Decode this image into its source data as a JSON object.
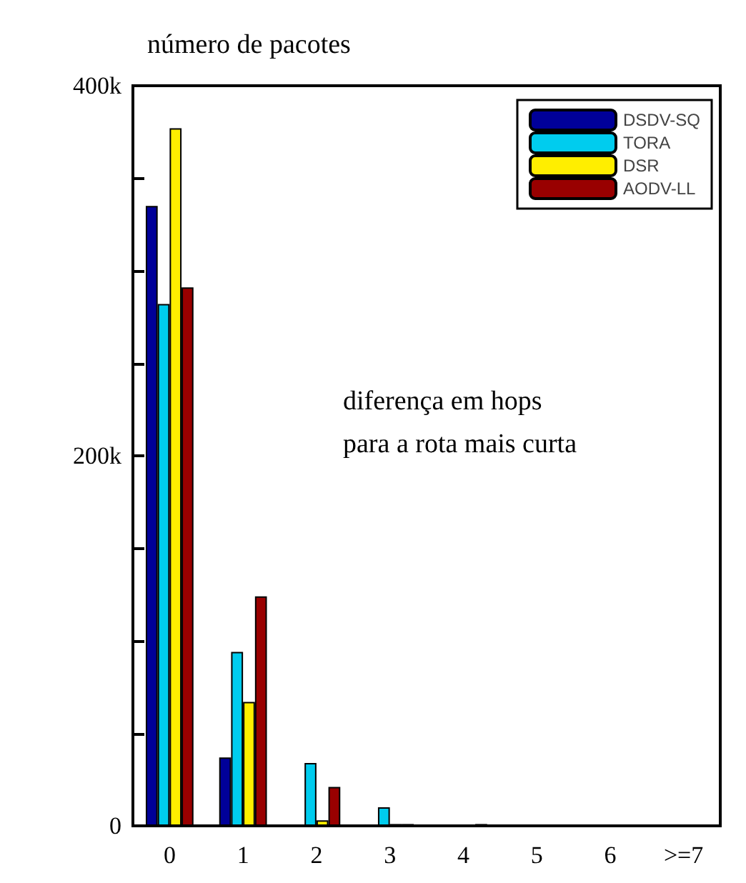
{
  "chart_data": {
    "type": "bar",
    "ylabel": "número de pacotes",
    "xlabel": "diferença em hops\npara a rota mais curta",
    "categories": [
      "0",
      "1",
      "2",
      "3",
      "4",
      "5",
      "6",
      ">=7"
    ],
    "series": [
      {
        "name": "DSDV-SQ",
        "color": "#000099",
        "values": [
          335000,
          37000,
          0,
          0,
          0,
          0,
          0,
          0
        ]
      },
      {
        "name": "TORA",
        "color": "#00ccee",
        "values": [
          282000,
          94000,
          34000,
          10000,
          0,
          0,
          0,
          0
        ]
      },
      {
        "name": "DSR",
        "color": "#ffee00",
        "values": [
          377000,
          67000,
          3000,
          1000,
          0,
          0,
          0,
          0
        ]
      },
      {
        "name": "AODV-LL",
        "color": "#990000",
        "values": [
          291000,
          124000,
          21000,
          1000,
          1000,
          0,
          0,
          0
        ]
      }
    ],
    "ylim": [
      0,
      400000
    ],
    "yticks": [
      0,
      {
        "value": 50000,
        "label": null
      },
      {
        "value": 100000,
        "label": null
      },
      {
        "value": 150000,
        "label": null
      },
      {
        "value": 200000,
        "label": "200k"
      },
      {
        "value": 250000,
        "label": null
      },
      {
        "value": 300000,
        "label": null
      },
      {
        "value": 350000,
        "label": null
      },
      {
        "value": 400000,
        "label": "400k"
      }
    ],
    "grid": false,
    "legend": "top right"
  }
}
